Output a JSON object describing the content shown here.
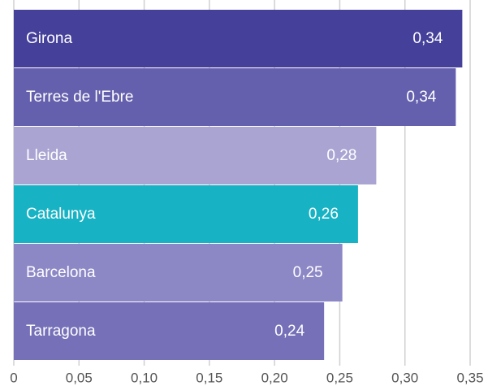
{
  "chart_data": {
    "type": "barh",
    "categories": [
      "Girona",
      "Terres de l'Ebre",
      "Lleida",
      "Catalunya",
      "Barcelona",
      "Tarragona"
    ],
    "values": [
      0.344,
      0.339,
      0.278,
      0.264,
      0.252,
      0.238
    ],
    "value_labels": [
      "0,34",
      "0,34",
      "0,28",
      "0,26",
      "0,25",
      "0,24"
    ],
    "colors": [
      "#45409a",
      "#6560ad",
      "#a9a4d2",
      "#17b3c4",
      "#8c87c5",
      "#7570b8"
    ],
    "xlim": [
      0,
      0.35
    ],
    "xticks": [
      0,
      {
        "value": 0.05,
        "label": "0,05"
      },
      {
        "value": 0.1,
        "label": "0,10"
      },
      {
        "value": 0.15,
        "label": "0,15"
      },
      {
        "value": 0.2,
        "label": "0,20"
      },
      {
        "value": 0.25,
        "label": "0,25"
      },
      {
        "value": 0.3,
        "label": "0,30"
      },
      {
        "value": 0.35,
        "label": "0,35"
      }
    ],
    "grid": true
  }
}
